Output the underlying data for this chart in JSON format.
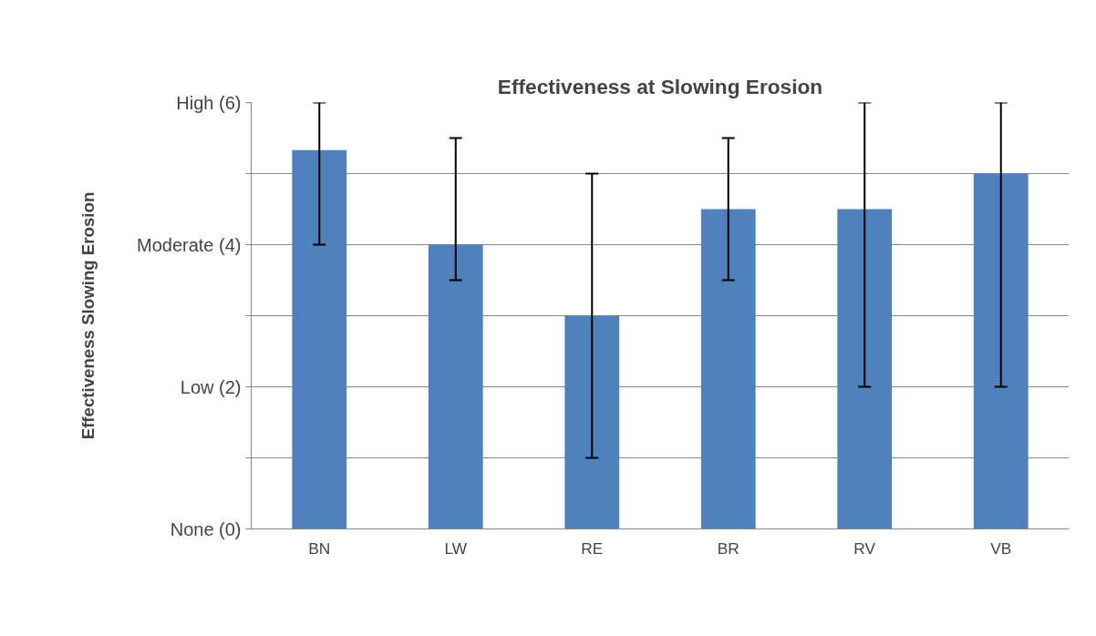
{
  "chart_data": {
    "type": "bar",
    "title": "Effectiveness at Slowing Erosion",
    "ylabel": "Effectiveness Slowing Erosion",
    "categories": [
      "BN",
      "LW",
      "RE",
      "BR",
      "RV",
      "VB"
    ],
    "values": [
      5.33,
      4,
      3,
      4.5,
      4.5,
      5
    ],
    "errors": [
      [
        4,
        6
      ],
      [
        3.5,
        5.5
      ],
      [
        1,
        5
      ],
      [
        3.5,
        5.5
      ],
      [
        2,
        6
      ],
      [
        2,
        6
      ]
    ],
    "color": "#4f81bd",
    "ylim": [
      0,
      6
    ],
    "yticks": [
      {
        "value": 0,
        "label": "None (0)"
      },
      {
        "value": 1,
        "label": null
      },
      {
        "value": 2,
        "label": "Low (2)"
      },
      {
        "value": 3,
        "label": null
      },
      {
        "value": 4,
        "label": "Moderate (4)"
      },
      {
        "value": 5,
        "label": null
      },
      {
        "value": 6,
        "label": "High (6)"
      }
    ],
    "grid": "y"
  }
}
